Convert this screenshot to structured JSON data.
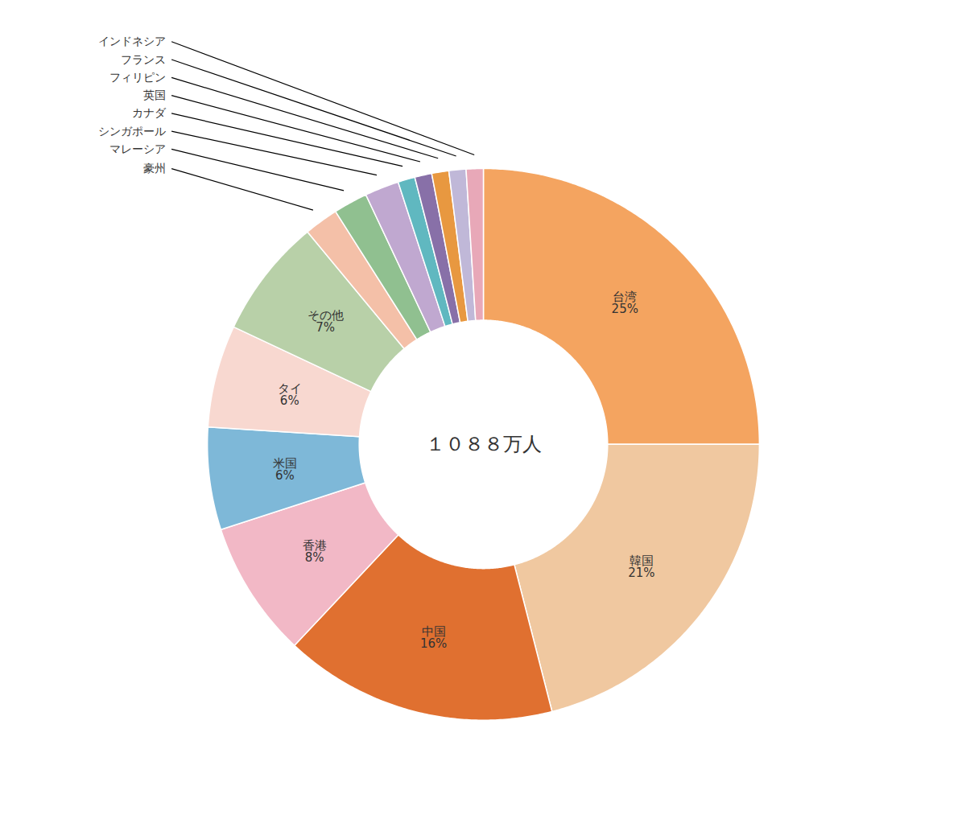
{
  "chart_data": {
    "type": "pie",
    "title": "１０８８万人",
    "categories": [
      "台湾",
      "韓国",
      "中国",
      "香港",
      "米国",
      "タイ",
      "その他",
      "豪州",
      "マレーシア",
      "シンガポール",
      "カナダ",
      "英国",
      "フィリピン",
      "フランス",
      "インドネシア"
    ],
    "values": [
      25,
      21,
      16,
      8,
      6,
      6,
      7,
      2,
      2,
      2,
      1,
      1,
      1,
      1,
      1
    ],
    "value_labels": [
      "25%",
      "21%",
      "16%",
      "8%",
      "6%",
      "6%",
      "7%",
      null,
      null,
      null,
      null,
      null,
      null,
      null,
      null
    ],
    "colors": [
      "#F4A460",
      "#F0C8A0",
      "#E07030",
      "#F2B8C6",
      "#7EB8D8",
      "#F8D8D0",
      "#B8D0A8",
      "#F4C0A8",
      "#90C090",
      "#C0A8D0",
      "#60B8C0",
      "#8870A8",
      "#E89840",
      "#C0B8D8",
      "#E8A8B8"
    ],
    "data_labels": true
  }
}
